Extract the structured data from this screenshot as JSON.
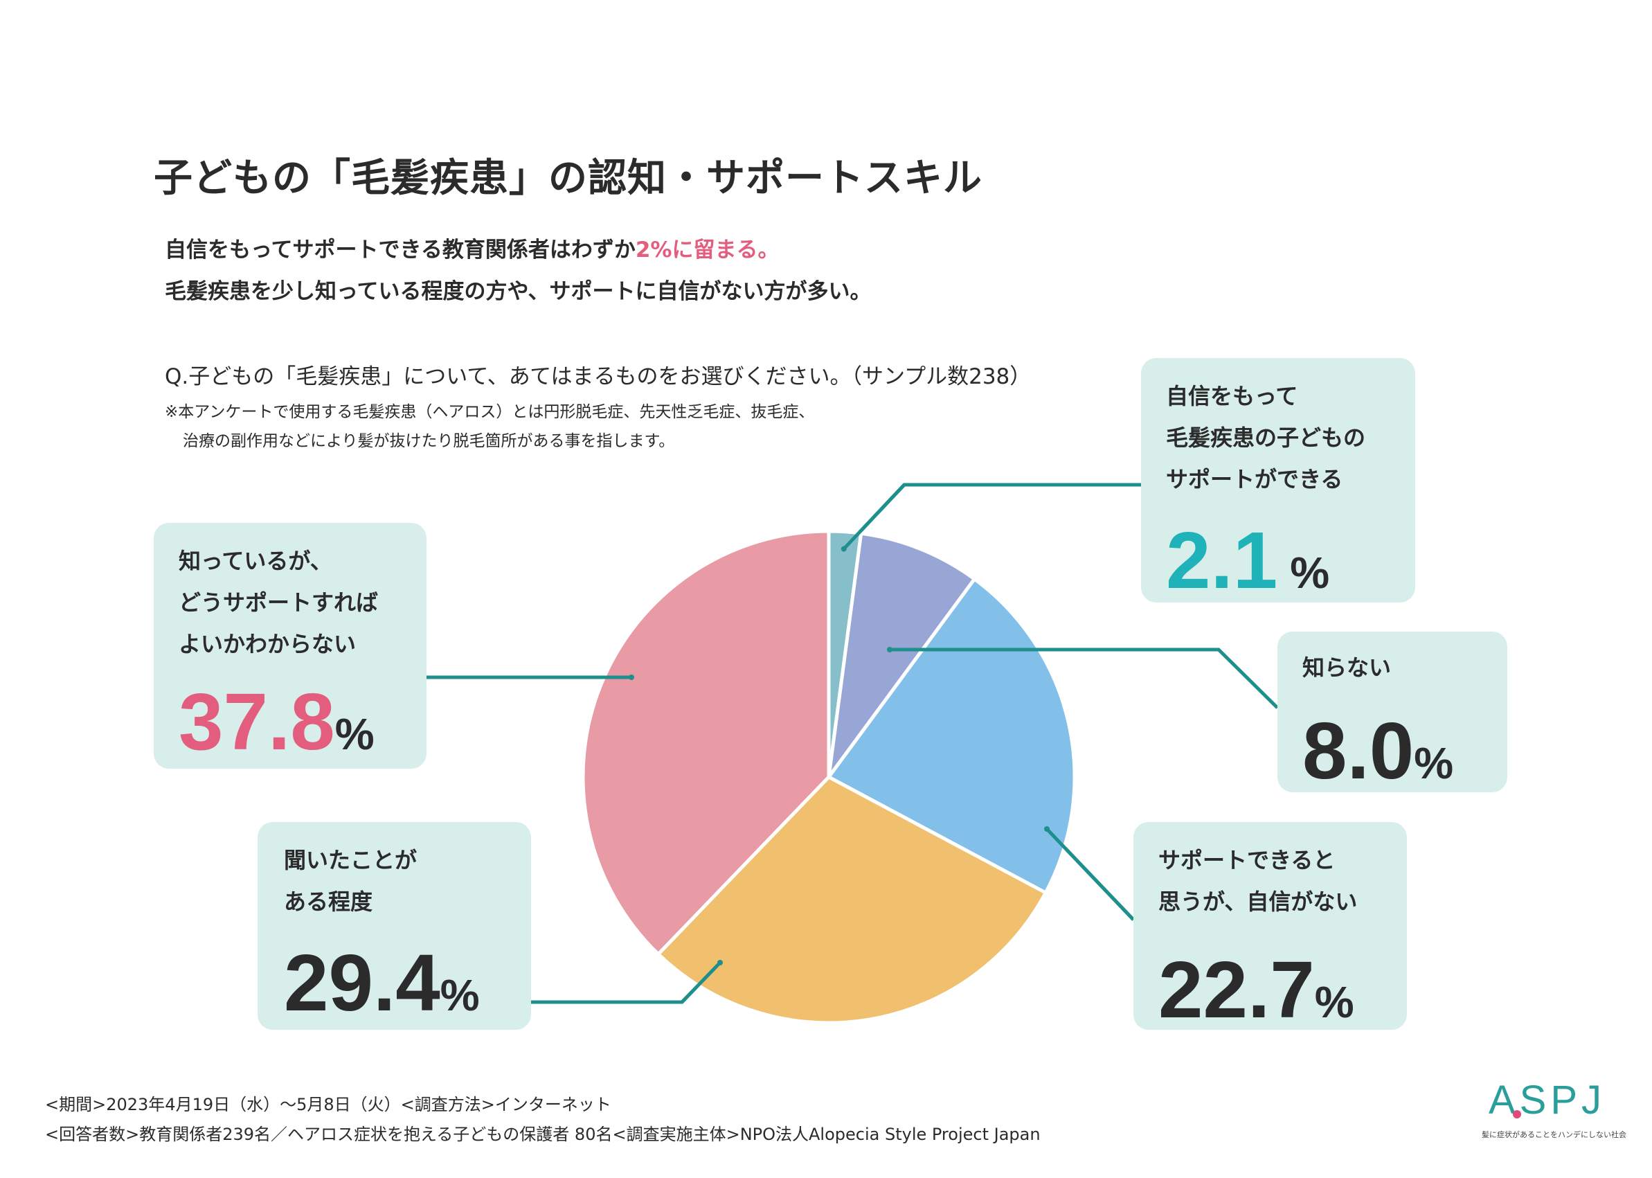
{
  "title": "子どもの「毛髪疾患」の認知・サポートスキル",
  "lead1_pre": "自信をもってサポートできる教育関係者はわずか",
  "lead1_highlight": "2%に留まる。",
  "lead2": "毛髪疾患を少し知っている程度の方や、サポートに自信がない方が多い。",
  "question": "Q.子どもの「毛髪疾患」について、あてはまるものをお選びください。（サンプル数238）",
  "note1": "※本アンケートで使用する毛髪疾患（ヘアロス）とは円形脱毛症、先天性乏毛症、抜毛症、",
  "note2": "治療の副作用などにより髪が抜けたり脱毛箇所がある事を指します。",
  "footer1": "<期間>2023年4月19日（水）～5月8日（火）<調査方法>インターネット",
  "footer2": "<回答者数>教育関係者239名／ヘアロス症状を抱える子どもの保護者 80名<調査実施主体>NPO法人Alopecia Style Project Japan",
  "logo": {
    "text": "ASPJ",
    "tagline": "髪に症状があることをハンデにしない社会"
  },
  "colors": {
    "accent": "#e35e7e",
    "teal": "#1fb2b8",
    "box": "#d7eeeb",
    "leader": "#1e8f8c",
    "slices": [
      "#86bfc9",
      "#98a6d5",
      "#82bfe9",
      "#f0c06e",
      "#e89aa5"
    ]
  },
  "chart_data": {
    "type": "pie",
    "title": "子どもの「毛髪疾患」の認知・サポートスキル",
    "unit": "%",
    "start": "12 o'clock, clockwise",
    "slices": [
      {
        "label_lines": [
          "自信をもって",
          "毛髪疾患の子どもの",
          "サポートができる"
        ],
        "value": 2.1,
        "value_text": "2.1"
      },
      {
        "label_lines": [
          "知らない"
        ],
        "value": 8.0,
        "value_text": "8.0"
      },
      {
        "label_lines": [
          "サポートできると",
          "思うが、自信がない"
        ],
        "value": 22.7,
        "value_text": "22.7"
      },
      {
        "label_lines": [
          "聞いたことが",
          "ある程度"
        ],
        "value": 29.4,
        "value_text": "29.4"
      },
      {
        "label_lines": [
          "知っているが、",
          "どうサポートすれば",
          "よいかわからない"
        ],
        "value": 37.8,
        "value_text": "37.8"
      }
    ],
    "percent_sign": "%"
  }
}
